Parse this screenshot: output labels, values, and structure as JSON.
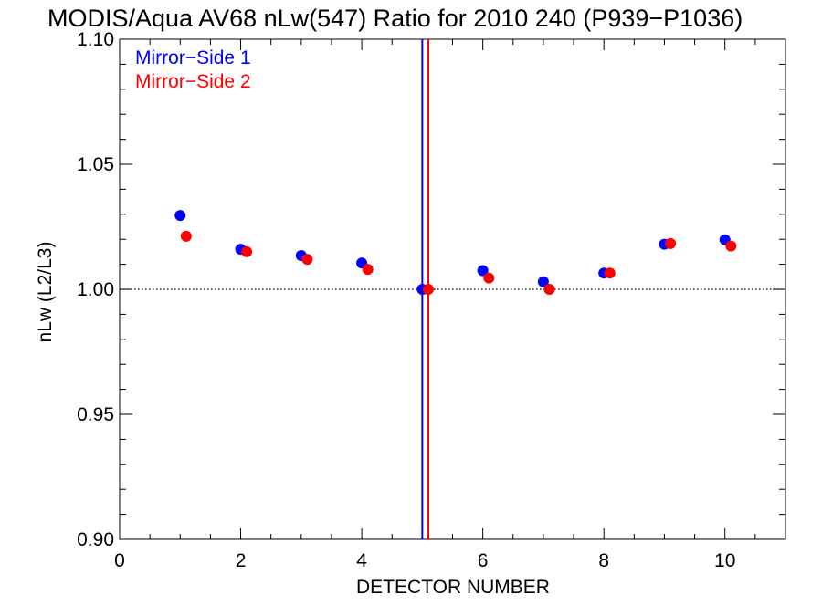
{
  "chart_data": {
    "type": "scatter",
    "title": "MODIS/Aqua AV68 nLw(547) Ratio for 2010 240 (P939−P1036)",
    "xlabel": "DETECTOR NUMBER",
    "ylabel": "nLw (L2/L3)",
    "xlim": [
      0,
      11
    ],
    "ylim": [
      0.9,
      1.1
    ],
    "x_ticks": [
      0,
      2,
      4,
      6,
      8,
      10
    ],
    "x_tick_labels": [
      "0",
      "2",
      "4",
      "6",
      "8",
      "10"
    ],
    "y_ticks": [
      0.9,
      0.95,
      1.0,
      1.05,
      1.1
    ],
    "y_tick_labels": [
      "0.90",
      "0.95",
      "1.00",
      "1.05",
      "1.10"
    ],
    "reference_line_y": 1.0,
    "grid": false,
    "legend_position": "top-left",
    "series": [
      {
        "name": "Mirror−Side 1",
        "color": "#0000ff",
        "x": [
          1,
          2,
          3,
          4,
          5,
          6,
          7,
          8,
          9,
          10
        ],
        "y": [
          1.0295,
          1.016,
          1.0135,
          1.0105,
          1.0,
          1.0075,
          1.003,
          1.0065,
          1.018,
          1.0198
        ],
        "vertical_line_x": 5.0
      },
      {
        "name": "Mirror−Side 2",
        "color": "#ff0000",
        "x": [
          1.1,
          2.1,
          3.1,
          4.1,
          5.1,
          6.1,
          7.1,
          8.1,
          9.1,
          10.1
        ],
        "y": [
          1.0212,
          1.015,
          1.012,
          1.008,
          1.0,
          1.0045,
          1.0,
          1.0065,
          1.0183,
          1.0173
        ],
        "vertical_line_x": 5.1
      }
    ]
  }
}
